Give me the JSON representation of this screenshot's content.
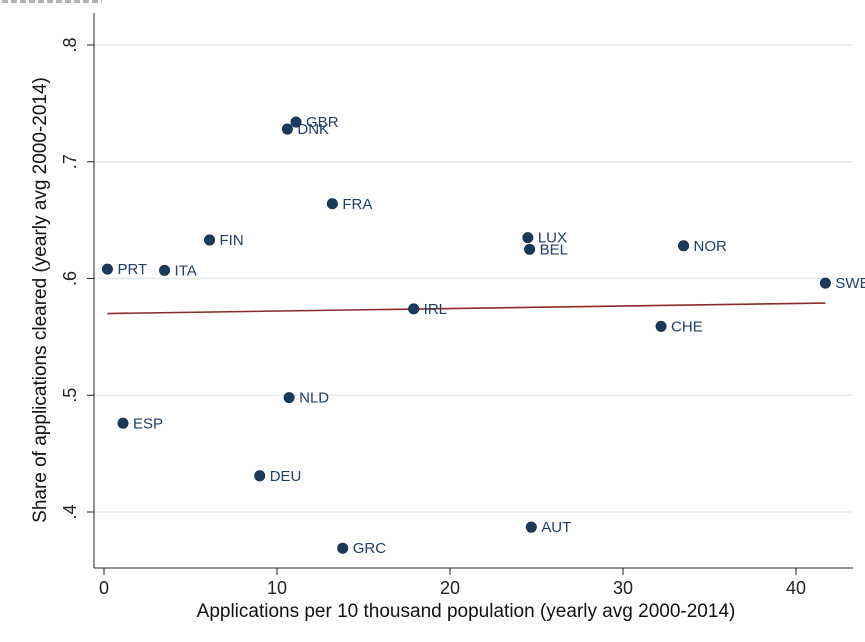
{
  "chart_data": {
    "type": "scatter",
    "title": "",
    "xlabel": "Applications per 10 thousand population (yearly avg 2000-2014)",
    "ylabel": "Share of applications cleared (yearly avg 2000-2014)",
    "xlim": [
      0,
      42
    ],
    "ylim": [
      0.36,
      0.82
    ],
    "xticks": [
      0,
      10,
      20,
      30,
      40
    ],
    "xtick_labels": [
      "0",
      "10",
      "20",
      "30",
      "40"
    ],
    "yticks": [
      0.4,
      0.5,
      0.6,
      0.7,
      0.8
    ],
    "ytick_labels": [
      ".4",
      ".5",
      ".6",
      ".7",
      ".8"
    ],
    "grid": true,
    "points": [
      {
        "label": "PRT",
        "x": 0.2,
        "y": 0.608
      },
      {
        "label": "ESP",
        "x": 1.1,
        "y": 0.476
      },
      {
        "label": "ITA",
        "x": 3.5,
        "y": 0.607
      },
      {
        "label": "FIN",
        "x": 6.1,
        "y": 0.633
      },
      {
        "label": "DEU",
        "x": 9.0,
        "y": 0.431
      },
      {
        "label": "DNK",
        "x": 10.6,
        "y": 0.728
      },
      {
        "label": "NLD",
        "x": 10.7,
        "y": 0.498
      },
      {
        "label": "GBR",
        "x": 11.1,
        "y": 0.734
      },
      {
        "label": "FRA",
        "x": 13.2,
        "y": 0.664
      },
      {
        "label": "GRC",
        "x": 13.8,
        "y": 0.369
      },
      {
        "label": "IRL",
        "x": 17.9,
        "y": 0.574
      },
      {
        "label": "LUX",
        "x": 24.5,
        "y": 0.635
      },
      {
        "label": "BEL",
        "x": 24.6,
        "y": 0.625
      },
      {
        "label": "AUT",
        "x": 24.7,
        "y": 0.387
      },
      {
        "label": "CHE",
        "x": 32.2,
        "y": 0.559
      },
      {
        "label": "NOR",
        "x": 33.5,
        "y": 0.628
      },
      {
        "label": "SWE",
        "x": 41.7,
        "y": 0.596
      }
    ],
    "fit_line": {
      "x": [
        0.2,
        41.7
      ],
      "y": [
        0.57,
        0.579
      ]
    },
    "colors": {
      "marker": "#1a3a5c",
      "label": "#1f3f66",
      "fit": "#8b2a2a",
      "grid": "#e3ece9"
    }
  }
}
